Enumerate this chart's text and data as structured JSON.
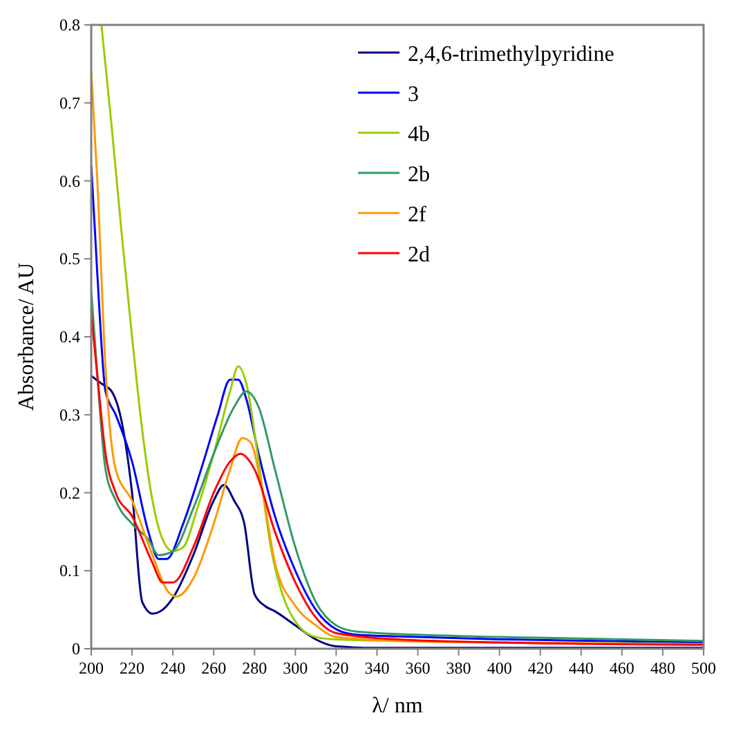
{
  "chart_data": {
    "type": "line",
    "xlabel": "λ/ nm",
    "ylabel": "Absorbance/ AU",
    "xlim": [
      200,
      500
    ],
    "ylim": [
      0,
      0.8
    ],
    "xticks": [
      200,
      220,
      240,
      260,
      280,
      300,
      320,
      340,
      360,
      380,
      400,
      420,
      440,
      460,
      480,
      500
    ],
    "yticks": [
      0,
      0.1,
      0.2,
      0.3,
      0.4,
      0.5,
      0.6,
      0.7,
      0.8
    ],
    "legend": "top right",
    "grid": false,
    "line_style": "solid",
    "series": [
      {
        "name": "2,4,6-trimethylpyridine",
        "color": "#000080",
        "x": [
          200,
          205,
          210,
          215,
          220,
          225,
          230,
          235,
          240,
          250,
          260,
          265,
          270,
          275,
          280,
          285,
          290,
          300,
          310,
          320,
          340,
          400,
          500
        ],
        "values": [
          0.35,
          0.34,
          0.33,
          0.29,
          0.2,
          0.06,
          0.045,
          0.05,
          0.065,
          0.12,
          0.19,
          0.21,
          0.19,
          0.16,
          0.07,
          0.055,
          0.048,
          0.03,
          0.012,
          0.003,
          0.001,
          0.001,
          0.001
        ]
      },
      {
        "name": "3",
        "color": "#0000ff",
        "x": [
          200,
          203,
          207,
          212,
          220,
          228,
          233,
          237,
          245,
          255,
          262,
          268,
          272,
          276,
          282,
          290,
          300,
          310,
          320,
          330,
          360,
          400,
          450,
          500
        ],
        "values": [
          0.62,
          0.48,
          0.33,
          0.3,
          0.24,
          0.15,
          0.115,
          0.115,
          0.16,
          0.24,
          0.3,
          0.345,
          0.345,
          0.32,
          0.25,
          0.17,
          0.1,
          0.05,
          0.025,
          0.018,
          0.015,
          0.012,
          0.01,
          0.008
        ]
      },
      {
        "name": "4b",
        "color": "#99cc00",
        "x": [
          205,
          210,
          215,
          220,
          225,
          230,
          235,
          240,
          245,
          252,
          260,
          268,
          272,
          276,
          282,
          288,
          295,
          300,
          310,
          320,
          400,
          500
        ],
        "values": [
          0.8,
          0.67,
          0.53,
          0.4,
          0.28,
          0.19,
          0.14,
          0.125,
          0.13,
          0.18,
          0.25,
          0.33,
          0.362,
          0.34,
          0.24,
          0.13,
          0.06,
          0.035,
          0.015,
          0.012,
          0.008,
          0.006
        ]
      },
      {
        "name": "2b",
        "color": "#339966",
        "x": [
          200,
          203,
          207,
          212,
          220,
          228,
          233,
          240,
          250,
          260,
          270,
          276,
          282,
          290,
          300,
          310,
          320,
          330,
          360,
          400,
          500
        ],
        "values": [
          0.46,
          0.35,
          0.23,
          0.19,
          0.16,
          0.14,
          0.12,
          0.125,
          0.18,
          0.25,
          0.31,
          0.33,
          0.31,
          0.23,
          0.13,
          0.06,
          0.03,
          0.022,
          0.018,
          0.015,
          0.01
        ]
      },
      {
        "name": "2f",
        "color": "#ff9900",
        "x": [
          200,
          203,
          207,
          212,
          220,
          230,
          238,
          242,
          250,
          260,
          268,
          274,
          278,
          284,
          290,
          300,
          310,
          320,
          350,
          400,
          500
        ],
        "values": [
          0.74,
          0.6,
          0.36,
          0.23,
          0.19,
          0.12,
          0.072,
          0.067,
          0.09,
          0.16,
          0.23,
          0.27,
          0.265,
          0.2,
          0.11,
          0.055,
          0.03,
          0.015,
          0.01,
          0.008,
          0.005
        ]
      },
      {
        "name": "2d",
        "color": "#ff0000",
        "x": [
          200,
          203,
          207,
          212,
          220,
          230,
          235,
          240,
          250,
          260,
          268,
          273,
          280,
          290,
          300,
          310,
          320,
          350,
          400,
          500
        ],
        "values": [
          0.43,
          0.35,
          0.25,
          0.2,
          0.17,
          0.11,
          0.085,
          0.085,
          0.13,
          0.2,
          0.24,
          0.25,
          0.23,
          0.15,
          0.085,
          0.04,
          0.02,
          0.012,
          0.008,
          0.005
        ]
      }
    ]
  }
}
